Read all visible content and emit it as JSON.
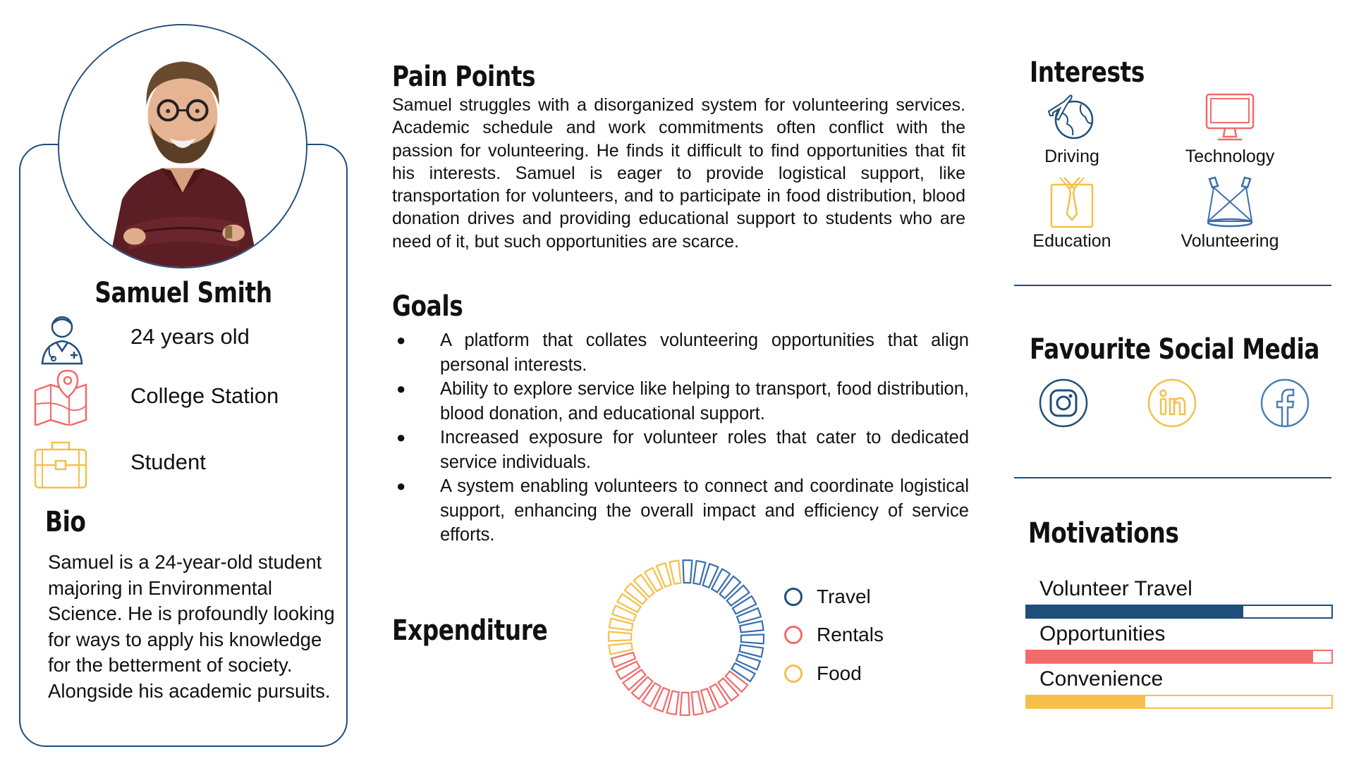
{
  "profile": {
    "name": "Samuel Smith",
    "age": "24 years old",
    "location": "College Station",
    "occupation": "Student"
  },
  "bio": {
    "heading": "Bio",
    "text": "Samuel is a 24-year-old student majoring in Environmental Science. He is profoundly looking for ways to apply his knowledge for the betterment of society. Alongside his academic pursuits."
  },
  "pain_points": {
    "heading": "Pain Points",
    "text": "Samuel struggles with a disorganized system for volunteering services. Academic schedule and work commitments often conflict with the passion for volunteering. He finds it difficult to find opportunities that fit his interests. Samuel is eager to provide logistical support, like transportation for volunteers, and to participate in food distribution, blood donation drives and providing educational support to students who are need of it, but such opportunities are scarce."
  },
  "goals": {
    "heading": "Goals",
    "items": [
      "A platform that collates volunteering opportunities that align personal interests.",
      "Ability to explore service like helping to transport, food distribution, blood donation, and educational support.",
      "Increased exposure for volunteer roles that cater to dedicated service individuals.",
      "A system enabling volunteers to connect and coordinate logistical support, enhancing the overall impact and efficiency of service efforts."
    ]
  },
  "expenditure": {
    "heading": "Expenditure",
    "legend": [
      {
        "label": "Travel",
        "color": "#1f4e79"
      },
      {
        "label": "Rentals",
        "color": "#f26b6b"
      },
      {
        "label": "Food",
        "color": "#f5c04a"
      }
    ],
    "segments": [
      {
        "label": "Travel",
        "share": 0.33,
        "color": "#3a6fb0"
      },
      {
        "label": "Rentals",
        "share": 0.33,
        "color": "#f26b6b"
      },
      {
        "label": "Food",
        "share": 0.25,
        "color": "#f5c04a"
      }
    ]
  },
  "interests": {
    "heading": "Interests",
    "items": [
      {
        "label": "Driving",
        "icon": "globe-plane-icon"
      },
      {
        "label": "Technology",
        "icon": "monitor-icon"
      },
      {
        "label": "Education",
        "icon": "shirt-tie-icon"
      },
      {
        "label": "Volunteering",
        "icon": "spotlights-icon"
      }
    ]
  },
  "social": {
    "heading": "Favourite Social Media",
    "items": [
      {
        "icon": "instagram-icon",
        "color": "#1f4e79"
      },
      {
        "icon": "linkedin-icon",
        "color": "#f5c04a"
      },
      {
        "icon": "facebook-icon",
        "color": "#4a7fb5"
      }
    ]
  },
  "motivations": {
    "heading": "Motivations",
    "items": [
      {
        "label": "Volunteer Travel",
        "level": 0.71,
        "color": "#1f4e79"
      },
      {
        "label": "Opportunities",
        "level": 0.94,
        "color": "#f26b6b"
      },
      {
        "label": "Convenience",
        "level": 0.39,
        "color": "#f5c04a"
      }
    ]
  }
}
